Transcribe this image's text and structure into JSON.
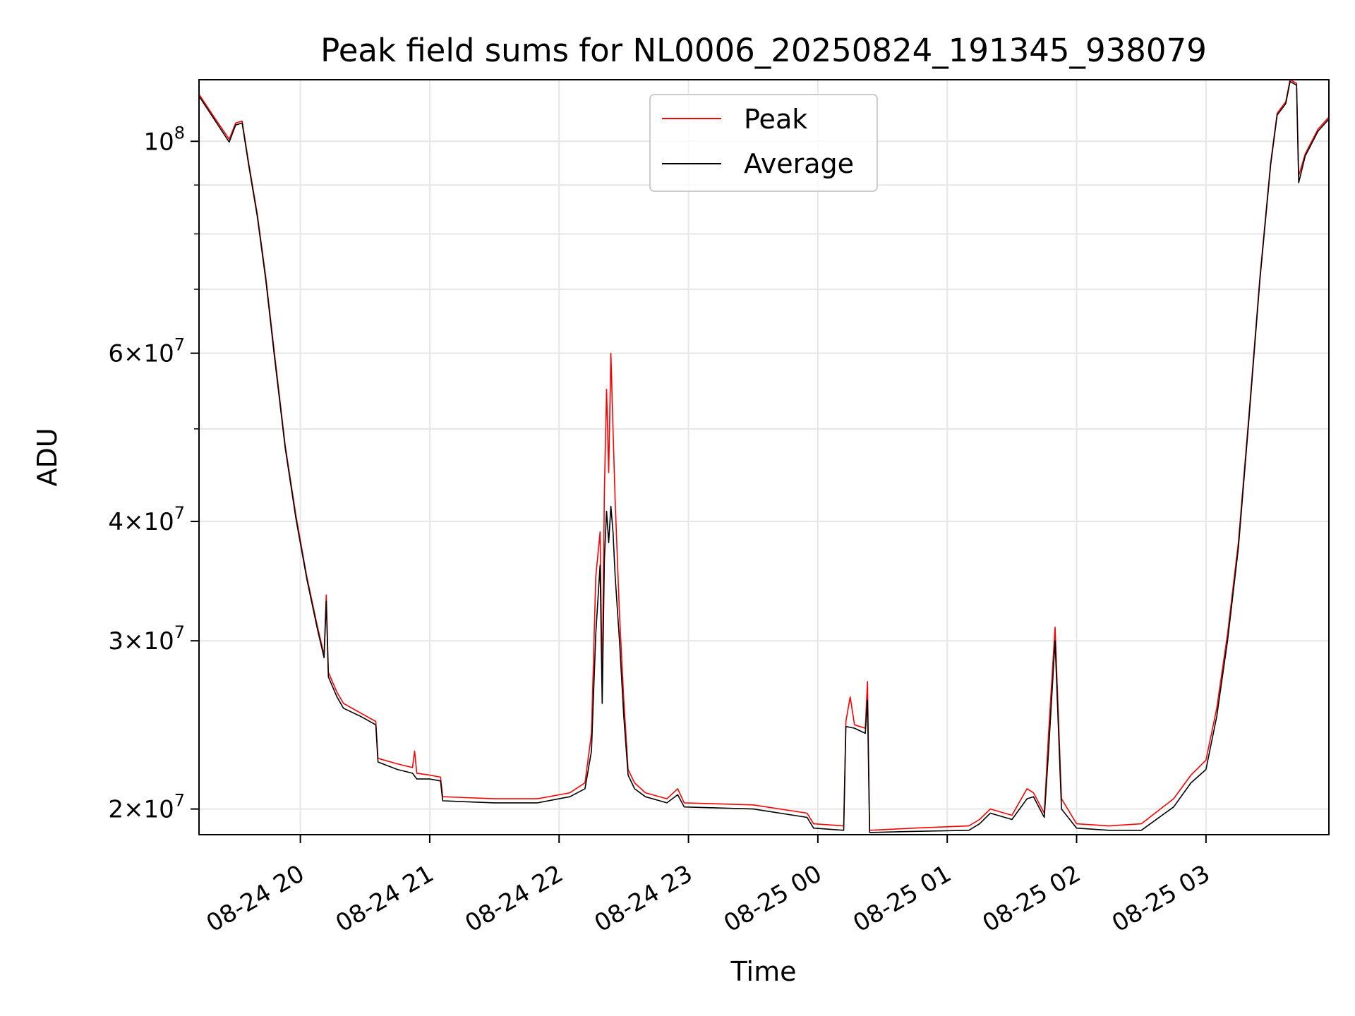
{
  "chart_data": {
    "type": "line",
    "title": "Peak field sums for NL0006_20250824_191345_938079",
    "xlabel": "Time",
    "ylabel": "ADU",
    "y_scale": "log",
    "ylim": [
      18800000,
      116000000
    ],
    "xlim": [
      "2025-08-24 19:13",
      "2025-08-25 03:57"
    ],
    "grid": true,
    "legend_position": "top-center",
    "x_ticks": [
      {
        "t": "2025-08-24 20:00",
        "label": "08-24 20"
      },
      {
        "t": "2025-08-24 21:00",
        "label": "08-24 21"
      },
      {
        "t": "2025-08-24 22:00",
        "label": "08-24 22"
      },
      {
        "t": "2025-08-24 23:00",
        "label": "08-24 23"
      },
      {
        "t": "2025-08-25 00:00",
        "label": "08-25 00"
      },
      {
        "t": "2025-08-25 01:00",
        "label": "08-25 01"
      },
      {
        "t": "2025-08-25 02:00",
        "label": "08-25 02"
      },
      {
        "t": "2025-08-25 03:00",
        "label": "08-25 03"
      }
    ],
    "y_ticks": [
      {
        "value": 20000000,
        "mantissa": "2",
        "exp": "7"
      },
      {
        "value": 30000000,
        "mantissa": "3",
        "exp": "7"
      },
      {
        "value": 40000000,
        "mantissa": "4",
        "exp": "7"
      },
      {
        "value": 60000000,
        "mantissa": "6",
        "exp": "7"
      },
      {
        "value": 100000000,
        "mantissa": "10",
        "exp": "8"
      }
    ],
    "y_minor_ticks": [
      50000000,
      70000000,
      80000000,
      90000000
    ],
    "series": [
      {
        "name": "Peak",
        "color": "#ff0000",
        "points": [
          [
            "2025-08-24 19:13",
            112000000
          ],
          [
            "2025-08-24 19:20",
            106000000
          ],
          [
            "2025-08-24 19:27",
            100500000
          ],
          [
            "2025-08-24 19:30",
            104500000
          ],
          [
            "2025-08-24 19:33",
            105000000
          ],
          [
            "2025-08-24 19:36",
            95000000
          ],
          [
            "2025-08-24 19:40",
            84000000
          ],
          [
            "2025-08-24 19:44",
            72000000
          ],
          [
            "2025-08-24 19:48",
            60000000
          ],
          [
            "2025-08-24 19:53",
            48000000
          ],
          [
            "2025-08-24 19:58",
            40500000
          ],
          [
            "2025-08-24 20:03",
            35000000
          ],
          [
            "2025-08-24 20:08",
            31000000
          ],
          [
            "2025-08-24 20:11",
            29000000
          ],
          [
            "2025-08-24 20:12",
            33500000
          ],
          [
            "2025-08-24 20:13",
            27800000
          ],
          [
            "2025-08-24 20:17",
            26500000
          ],
          [
            "2025-08-24 20:20",
            25800000
          ],
          [
            "2025-08-24 20:28",
            25200000
          ],
          [
            "2025-08-24 20:35",
            24700000
          ],
          [
            "2025-08-24 20:36",
            22600000
          ],
          [
            "2025-08-24 20:45",
            22300000
          ],
          [
            "2025-08-24 20:52",
            22100000
          ],
          [
            "2025-08-24 20:53",
            23000000
          ],
          [
            "2025-08-24 20:54",
            21800000
          ],
          [
            "2025-08-24 21:00",
            21700000
          ],
          [
            "2025-08-24 21:05",
            21600000
          ],
          [
            "2025-08-24 21:06",
            20600000
          ],
          [
            "2025-08-24 21:30",
            20500000
          ],
          [
            "2025-08-24 21:50",
            20500000
          ],
          [
            "2025-08-24 22:05",
            20800000
          ],
          [
            "2025-08-24 22:12",
            21300000
          ],
          [
            "2025-08-24 22:15",
            24000000
          ],
          [
            "2025-08-24 22:17",
            35000000
          ],
          [
            "2025-08-24 22:19",
            39000000
          ],
          [
            "2025-08-24 22:20",
            27000000
          ],
          [
            "2025-08-24 22:21",
            43000000
          ],
          [
            "2025-08-24 22:22",
            55000000
          ],
          [
            "2025-08-24 22:23",
            45000000
          ],
          [
            "2025-08-24 22:24",
            60000000
          ],
          [
            "2025-08-24 22:25",
            50000000
          ],
          [
            "2025-08-24 22:26",
            42000000
          ],
          [
            "2025-08-24 22:28",
            32000000
          ],
          [
            "2025-08-24 22:30",
            26000000
          ],
          [
            "2025-08-24 22:32",
            22000000
          ],
          [
            "2025-08-24 22:35",
            21300000
          ],
          [
            "2025-08-24 22:40",
            20800000
          ],
          [
            "2025-08-24 22:50",
            20500000
          ],
          [
            "2025-08-24 22:55",
            21000000
          ],
          [
            "2025-08-24 22:58",
            20300000
          ],
          [
            "2025-08-24 23:30",
            20200000
          ],
          [
            "2025-08-24 23:55",
            19800000
          ],
          [
            "2025-08-24 23:58",
            19300000
          ],
          [
            "2025-08-25 00:12",
            19200000
          ],
          [
            "2025-08-25 00:13",
            24700000
          ],
          [
            "2025-08-25 00:15",
            26200000
          ],
          [
            "2025-08-25 00:17",
            24500000
          ],
          [
            "2025-08-25 00:22",
            24300000
          ],
          [
            "2025-08-25 00:23",
            27200000
          ],
          [
            "2025-08-25 00:24",
            19000000
          ],
          [
            "2025-08-25 00:45",
            19100000
          ],
          [
            "2025-08-25 01:10",
            19200000
          ],
          [
            "2025-08-25 01:15",
            19500000
          ],
          [
            "2025-08-25 01:20",
            20000000
          ],
          [
            "2025-08-25 01:30",
            19700000
          ],
          [
            "2025-08-25 01:37",
            21000000
          ],
          [
            "2025-08-25 01:40",
            20800000
          ],
          [
            "2025-08-25 01:45",
            19800000
          ],
          [
            "2025-08-25 01:47",
            24000000
          ],
          [
            "2025-08-25 01:50",
            31000000
          ],
          [
            "2025-08-25 01:53",
            20500000
          ],
          [
            "2025-08-25 02:00",
            19300000
          ],
          [
            "2025-08-25 02:15",
            19200000
          ],
          [
            "2025-08-25 02:30",
            19300000
          ],
          [
            "2025-08-25 02:45",
            20500000
          ],
          [
            "2025-08-25 02:53",
            21700000
          ],
          [
            "2025-08-25 03:00",
            22500000
          ],
          [
            "2025-08-25 03:05",
            25500000
          ],
          [
            "2025-08-25 03:10",
            30500000
          ],
          [
            "2025-08-25 03:15",
            38000000
          ],
          [
            "2025-08-25 03:20",
            52000000
          ],
          [
            "2025-08-25 03:25",
            72000000
          ],
          [
            "2025-08-25 03:30",
            95000000
          ],
          [
            "2025-08-25 03:33",
            107000000
          ],
          [
            "2025-08-25 03:37",
            110000000
          ],
          [
            "2025-08-25 03:39",
            116000000
          ],
          [
            "2025-08-25 03:42",
            115000000
          ],
          [
            "2025-08-25 03:43",
            92000000
          ],
          [
            "2025-08-25 03:46",
            97000000
          ],
          [
            "2025-08-25 03:52",
            103000000
          ],
          [
            "2025-08-25 03:57",
            106000000
          ]
        ]
      },
      {
        "name": "Average",
        "color": "#000000",
        "points": [
          [
            "2025-08-24 19:13",
            111500000
          ],
          [
            "2025-08-24 19:20",
            105500000
          ],
          [
            "2025-08-24 19:27",
            99800000
          ],
          [
            "2025-08-24 19:30",
            104000000
          ],
          [
            "2025-08-24 19:33",
            104500000
          ],
          [
            "2025-08-24 19:36",
            94500000
          ],
          [
            "2025-08-24 19:40",
            83500000
          ],
          [
            "2025-08-24 19:44",
            71500000
          ],
          [
            "2025-08-24 19:48",
            59500000
          ],
          [
            "2025-08-24 19:53",
            47700000
          ],
          [
            "2025-08-24 19:58",
            40200000
          ],
          [
            "2025-08-24 20:03",
            34800000
          ],
          [
            "2025-08-24 20:08",
            30800000
          ],
          [
            "2025-08-24 20:11",
            28800000
          ],
          [
            "2025-08-24 20:12",
            33000000
          ],
          [
            "2025-08-24 20:13",
            27500000
          ],
          [
            "2025-08-24 20:17",
            26200000
          ],
          [
            "2025-08-24 20:20",
            25500000
          ],
          [
            "2025-08-24 20:28",
            25000000
          ],
          [
            "2025-08-24 20:35",
            24500000
          ],
          [
            "2025-08-24 20:36",
            22400000
          ],
          [
            "2025-08-24 20:45",
            22000000
          ],
          [
            "2025-08-24 20:52",
            21800000
          ],
          [
            "2025-08-24 20:54",
            21500000
          ],
          [
            "2025-08-24 21:00",
            21500000
          ],
          [
            "2025-08-24 21:05",
            21400000
          ],
          [
            "2025-08-24 21:06",
            20400000
          ],
          [
            "2025-08-24 21:30",
            20300000
          ],
          [
            "2025-08-24 21:50",
            20300000
          ],
          [
            "2025-08-24 22:05",
            20600000
          ],
          [
            "2025-08-24 22:12",
            21000000
          ],
          [
            "2025-08-24 22:15",
            23000000
          ],
          [
            "2025-08-24 22:17",
            30500000
          ],
          [
            "2025-08-24 22:19",
            36000000
          ],
          [
            "2025-08-24 22:20",
            25800000
          ],
          [
            "2025-08-24 22:21",
            36500000
          ],
          [
            "2025-08-24 22:22",
            41000000
          ],
          [
            "2025-08-24 22:23",
            38000000
          ],
          [
            "2025-08-24 22:24",
            41500000
          ],
          [
            "2025-08-24 22:25",
            39000000
          ],
          [
            "2025-08-24 22:26",
            35000000
          ],
          [
            "2025-08-24 22:28",
            30000000
          ],
          [
            "2025-08-24 22:30",
            25000000
          ],
          [
            "2025-08-24 22:32",
            21700000
          ],
          [
            "2025-08-24 22:35",
            21000000
          ],
          [
            "2025-08-24 22:40",
            20600000
          ],
          [
            "2025-08-24 22:50",
            20300000
          ],
          [
            "2025-08-24 22:55",
            20700000
          ],
          [
            "2025-08-24 22:58",
            20100000
          ],
          [
            "2025-08-24 23:30",
            20000000
          ],
          [
            "2025-08-24 23:55",
            19600000
          ],
          [
            "2025-08-24 23:58",
            19100000
          ],
          [
            "2025-08-25 00:12",
            19000000
          ],
          [
            "2025-08-25 00:13",
            24400000
          ],
          [
            "2025-08-25 00:17",
            24300000
          ],
          [
            "2025-08-25 00:22",
            24000000
          ],
          [
            "2025-08-25 00:23",
            26000000
          ],
          [
            "2025-08-25 00:24",
            18900000
          ],
          [
            "2025-08-25 00:45",
            18950000
          ],
          [
            "2025-08-25 01:10",
            19000000
          ],
          [
            "2025-08-25 01:15",
            19300000
          ],
          [
            "2025-08-25 01:20",
            19800000
          ],
          [
            "2025-08-25 01:30",
            19500000
          ],
          [
            "2025-08-25 01:37",
            20500000
          ],
          [
            "2025-08-25 01:40",
            20600000
          ],
          [
            "2025-08-25 01:45",
            19600000
          ],
          [
            "2025-08-25 01:47",
            23000000
          ],
          [
            "2025-08-25 01:50",
            30000000
          ],
          [
            "2025-08-25 01:53",
            20000000
          ],
          [
            "2025-08-25 02:00",
            19100000
          ],
          [
            "2025-08-25 02:15",
            19000000
          ],
          [
            "2025-08-25 02:30",
            19000000
          ],
          [
            "2025-08-25 02:45",
            20100000
          ],
          [
            "2025-08-25 02:53",
            21300000
          ],
          [
            "2025-08-25 03:00",
            22000000
          ],
          [
            "2025-08-25 03:05",
            25000000
          ],
          [
            "2025-08-25 03:10",
            30000000
          ],
          [
            "2025-08-25 03:15",
            37500000
          ],
          [
            "2025-08-25 03:20",
            51500000
          ],
          [
            "2025-08-25 03:25",
            71500000
          ],
          [
            "2025-08-25 03:30",
            94500000
          ],
          [
            "2025-08-25 03:33",
            106500000
          ],
          [
            "2025-08-25 03:37",
            109500000
          ],
          [
            "2025-08-25 03:39",
            115500000
          ],
          [
            "2025-08-25 03:42",
            114500000
          ],
          [
            "2025-08-25 03:43",
            90500000
          ],
          [
            "2025-08-25 03:46",
            96500000
          ],
          [
            "2025-08-25 03:52",
            102500000
          ],
          [
            "2025-08-25 03:57",
            105500000
          ]
        ]
      }
    ]
  }
}
